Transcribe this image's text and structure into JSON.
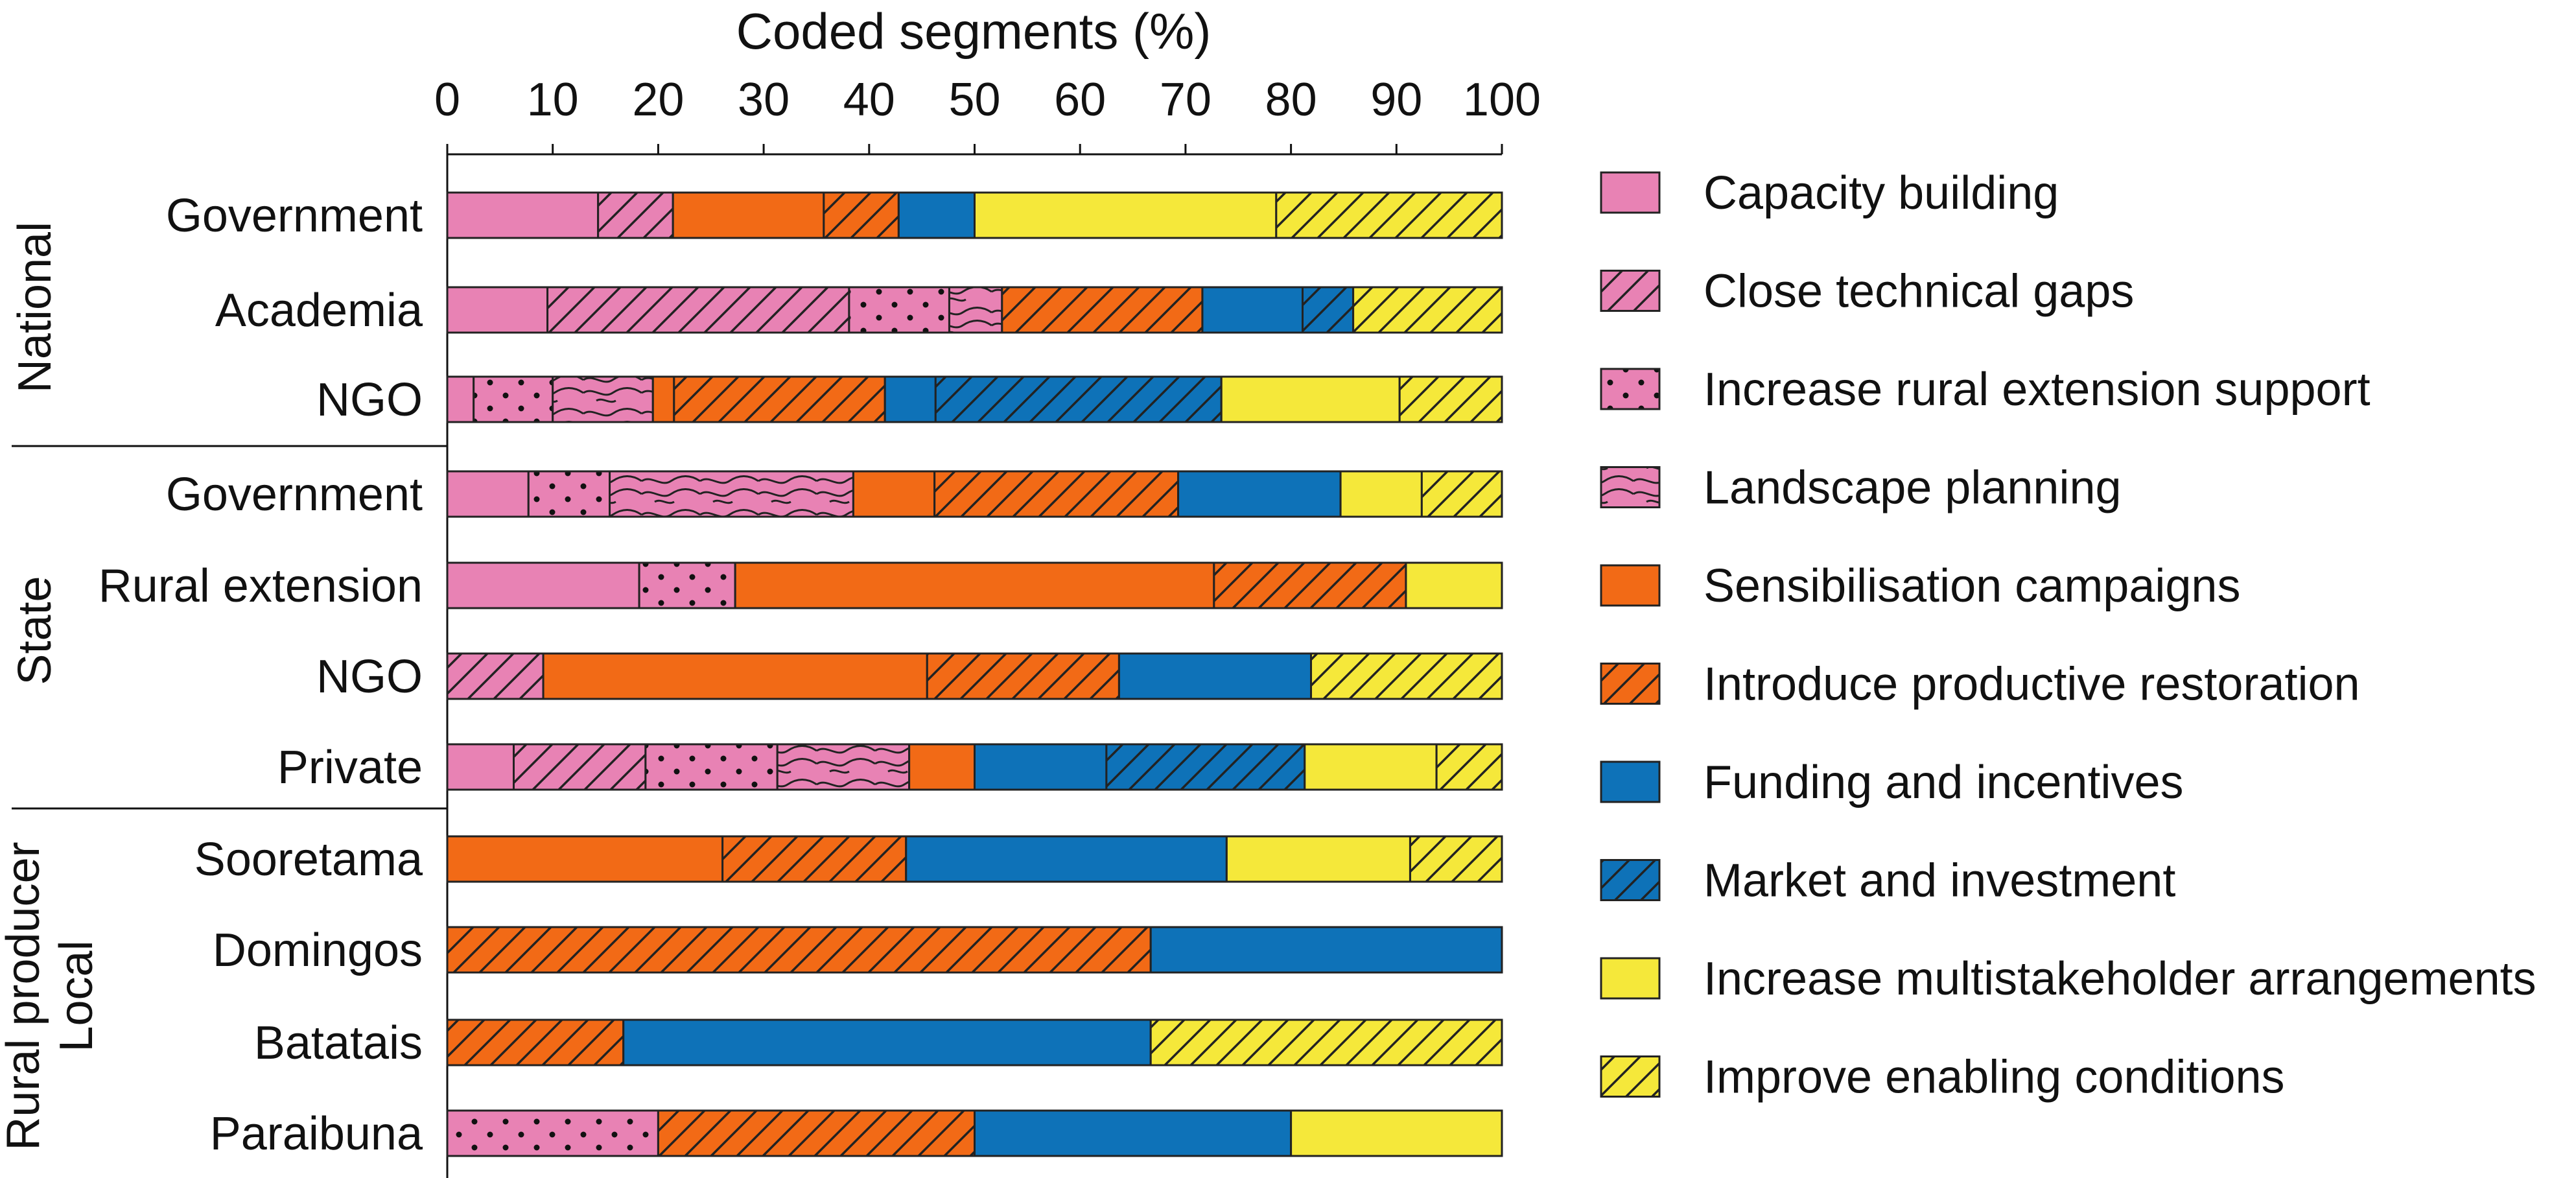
{
  "chart_data": {
    "type": "bar",
    "orientation": "horizontal",
    "stacked": true,
    "x_title": "Coded segments (%)",
    "x_range": [
      0,
      100
    ],
    "x_ticks": [
      0,
      10,
      20,
      30,
      40,
      50,
      60,
      70,
      80,
      90,
      100
    ],
    "x_axis_position": "top",
    "legend_position": "right",
    "grid": false,
    "categories": [
      {
        "key": "capacity",
        "label": "Capacity building",
        "color": "#E882B4",
        "pattern": "none"
      },
      {
        "key": "technical",
        "label": "Close technical gaps",
        "color": "#E882B4",
        "pattern": "hatch"
      },
      {
        "key": "extension",
        "label": "Increase rural extension support",
        "color": "#E882B4",
        "pattern": "dots"
      },
      {
        "key": "landscape",
        "label": "Landscape planning",
        "color": "#E882B4",
        "pattern": "waves"
      },
      {
        "key": "sensibilisation",
        "label": "Sensibilisation campaigns",
        "color": "#F26A16",
        "pattern": "none"
      },
      {
        "key": "productive",
        "label": "Introduce productive restoration",
        "color": "#F26A16",
        "pattern": "hatch"
      },
      {
        "key": "funding",
        "label": "Funding and incentives",
        "color": "#0E72B8",
        "pattern": "none"
      },
      {
        "key": "market",
        "label": "Market and investment",
        "color": "#0E72B8",
        "pattern": "hatch"
      },
      {
        "key": "multistakeholder",
        "label": "Increase multistakeholder arrangements",
        "color": "#F5E83A",
        "pattern": "none"
      },
      {
        "key": "enabling",
        "label": "Improve enabling conditions",
        "color": "#F5E83A",
        "pattern": "hatch"
      }
    ],
    "groups": [
      {
        "label": "National",
        "label_lines": [
          "National"
        ],
        "rows": [
          {
            "label": "Government",
            "values": {
              "capacity": 14.3,
              "technical": 7.1,
              "sensibilisation": 14.3,
              "productive": 7.1,
              "funding": 7.2,
              "multistakeholder": 28.6,
              "enabling": 21.4
            }
          },
          {
            "label": "Academia",
            "values": {
              "capacity": 9.5,
              "technical": 28.6,
              "extension": 9.5,
              "landscape": 5.0,
              "sensibilisation": 0.0,
              "productive": 19.0,
              "funding": 9.5,
              "market": 4.8,
              "enabling": 14.1
            }
          },
          {
            "label": "NGO",
            "values": {
              "capacity": 2.5,
              "extension": 7.5,
              "landscape": 9.5,
              "sensibilisation": 2.0,
              "productive": 20.0,
              "funding": 4.8,
              "market": 27.1,
              "multistakeholder": 16.9,
              "enabling": 9.7
            }
          }
        ]
      },
      {
        "label": "State",
        "label_lines": [
          "State"
        ],
        "rows": [
          {
            "label": "Government",
            "values": {
              "capacity": 7.7,
              "extension": 7.7,
              "landscape": 23.1,
              "sensibilisation": 7.7,
              "productive": 23.1,
              "funding": 15.4,
              "multistakeholder": 7.7,
              "enabling": 7.6
            }
          },
          {
            "label": "Rural extension",
            "values": {
              "capacity": 18.2,
              "extension": 9.1,
              "sensibilisation": 45.4,
              "productive": 18.2,
              "multistakeholder": 9.1
            }
          },
          {
            "label": "NGO",
            "values": {
              "technical": 9.1,
              "sensibilisation": 36.4,
              "productive": 18.2,
              "funding": 18.2,
              "enabling": 18.1
            }
          },
          {
            "label": "Private",
            "values": {
              "capacity": 6.3,
              "technical": 12.5,
              "extension": 12.5,
              "landscape": 12.5,
              "sensibilisation": 6.2,
              "funding": 12.5,
              "market": 18.8,
              "multistakeholder": 12.5,
              "enabling": 6.2
            }
          }
        ]
      },
      {
        "label": "Rural producer Local",
        "label_lines": [
          "Rural producer",
          "Local"
        ],
        "rows": [
          {
            "label": "Sooretama",
            "values": {
              "sensibilisation": 26.1,
              "productive": 17.4,
              "funding": 30.4,
              "multistakeholder": 17.4,
              "enabling": 8.7
            }
          },
          {
            "label": "Domingos",
            "values": {
              "productive": 66.7,
              "funding": 33.3
            }
          },
          {
            "label": "Batatais",
            "values": {
              "productive": 16.7,
              "funding": 50.0,
              "enabling": 33.3
            }
          },
          {
            "label": "Paraibuna",
            "values": {
              "extension": 20.0,
              "productive": 30.0,
              "funding": 30.0,
              "multistakeholder": 20.0
            }
          }
        ]
      }
    ]
  }
}
